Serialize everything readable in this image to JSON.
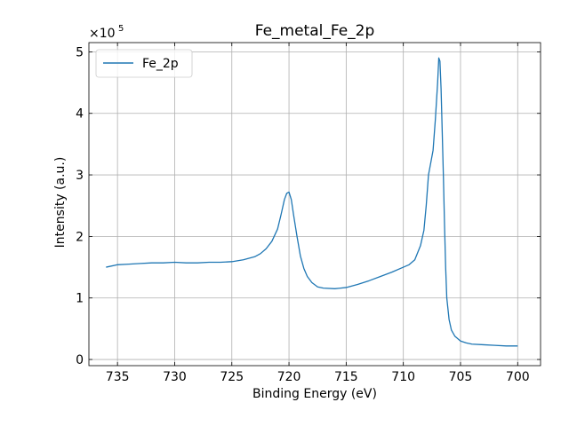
{
  "chart_data": {
    "type": "line",
    "title": "Fe_metal_Fe_2p",
    "xlabel": "Binding Energy (eV)",
    "ylabel": "Intensity (a.u.)",
    "y_scale_label": "×10",
    "y_scale_exponent": "5",
    "xlim": [
      737.5,
      698.0
    ],
    "ylim": [
      -0.1,
      5.15
    ],
    "x_reversed": true,
    "grid": true,
    "legend_position": "top-left",
    "x_ticks": [
      735,
      730,
      725,
      720,
      715,
      710,
      705,
      700
    ],
    "x_tick_labels": [
      "735",
      "730",
      "725",
      "720",
      "715",
      "710",
      "705",
      "700"
    ],
    "y_ticks": [
      0,
      1,
      2,
      3,
      4,
      5
    ],
    "y_tick_labels": [
      "0",
      "1",
      "2",
      "3",
      "4",
      "5"
    ],
    "series": [
      {
        "name": "Fe_2p",
        "color": "#1f77b4",
        "x": [
          736.0,
          735.0,
          734.0,
          733.0,
          732.0,
          731.0,
          730.0,
          729.0,
          728.0,
          727.0,
          726.0,
          725.0,
          724.0,
          723.0,
          722.5,
          722.0,
          721.5,
          721.0,
          720.7,
          720.4,
          720.2,
          720.0,
          719.8,
          719.6,
          719.3,
          719.0,
          718.7,
          718.4,
          718.0,
          717.5,
          717.0,
          716.0,
          715.0,
          714.0,
          713.0,
          712.0,
          711.0,
          710.0,
          709.5,
          709.0,
          708.5,
          708.2,
          708.0,
          707.8,
          707.6,
          707.4,
          707.2,
          707.0,
          706.9,
          706.8,
          706.7,
          706.6,
          706.5,
          706.4,
          706.3,
          706.2,
          706.0,
          705.8,
          705.5,
          705.0,
          704.5,
          704.0,
          703.0,
          702.0,
          701.0,
          700.0
        ],
        "y": [
          1.5,
          1.54,
          1.55,
          1.56,
          1.57,
          1.57,
          1.58,
          1.57,
          1.57,
          1.58,
          1.58,
          1.59,
          1.62,
          1.67,
          1.72,
          1.8,
          1.92,
          2.12,
          2.35,
          2.6,
          2.7,
          2.72,
          2.6,
          2.35,
          2.0,
          1.68,
          1.48,
          1.35,
          1.25,
          1.18,
          1.16,
          1.15,
          1.17,
          1.22,
          1.28,
          1.35,
          1.42,
          1.5,
          1.54,
          1.62,
          1.85,
          2.1,
          2.5,
          3.0,
          3.2,
          3.4,
          3.9,
          4.5,
          4.9,
          4.85,
          4.4,
          3.7,
          3.0,
          2.2,
          1.5,
          1.0,
          0.65,
          0.48,
          0.38,
          0.3,
          0.27,
          0.25,
          0.24,
          0.23,
          0.22,
          0.22
        ]
      }
    ]
  }
}
